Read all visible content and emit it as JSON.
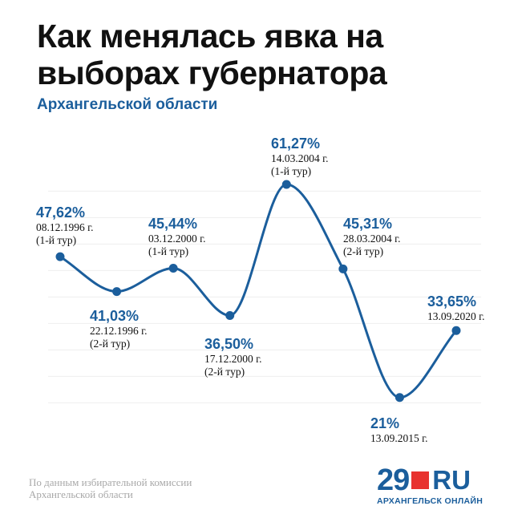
{
  "header": {
    "title_line1": "Как менялась явка на",
    "title_line2": "выборах губернатора",
    "subtitle": "Архангельской области"
  },
  "chart_data": {
    "type": "line",
    "title": "Как менялась явка на выборах губернатора",
    "subtitle": "Архангельской области",
    "xlabel": "",
    "ylabel": "",
    "grid": true,
    "line_color": "#1b5e9c",
    "points": [
      {
        "value": 47.62,
        "value_label": "47,62%",
        "date": "08.12.1996 г.",
        "round": "(1-й тур)"
      },
      {
        "value": 41.03,
        "value_label": "41,03%",
        "date": "22.12.1996 г.",
        "round": "(2-й тур)"
      },
      {
        "value": 45.44,
        "value_label": "45,44%",
        "date": "03.12.2000 г.",
        "round": "(1-й тур)"
      },
      {
        "value": 36.5,
        "value_label": "36,50%",
        "date": "17.12.2000 г.",
        "round": "(2-й тур)"
      },
      {
        "value": 61.27,
        "value_label": "61,27%",
        "date": "14.03.2004 г.",
        "round": "(1-й тур)"
      },
      {
        "value": 45.31,
        "value_label": "45,31%",
        "date": "28.03.2004 г.",
        "round": "(2-й тур)"
      },
      {
        "value": 21,
        "value_label": "21%",
        "date": "13.09.2015 г.",
        "round": ""
      },
      {
        "value": 33.65,
        "value_label": "33,65%",
        "date": "13.09.2020 г.",
        "round": ""
      }
    ]
  },
  "footer": {
    "source_line1": "По данным избирательной комиссии",
    "source_line2": "Архангельской области",
    "logo_number": "29",
    "logo_suffix": "RU",
    "logo_caption": "АРХАНГЕЛЬСК ОНЛАЙН"
  },
  "colors": {
    "accent": "#1b5e9c",
    "logo_red": "#e8322f",
    "text": "#111111"
  }
}
